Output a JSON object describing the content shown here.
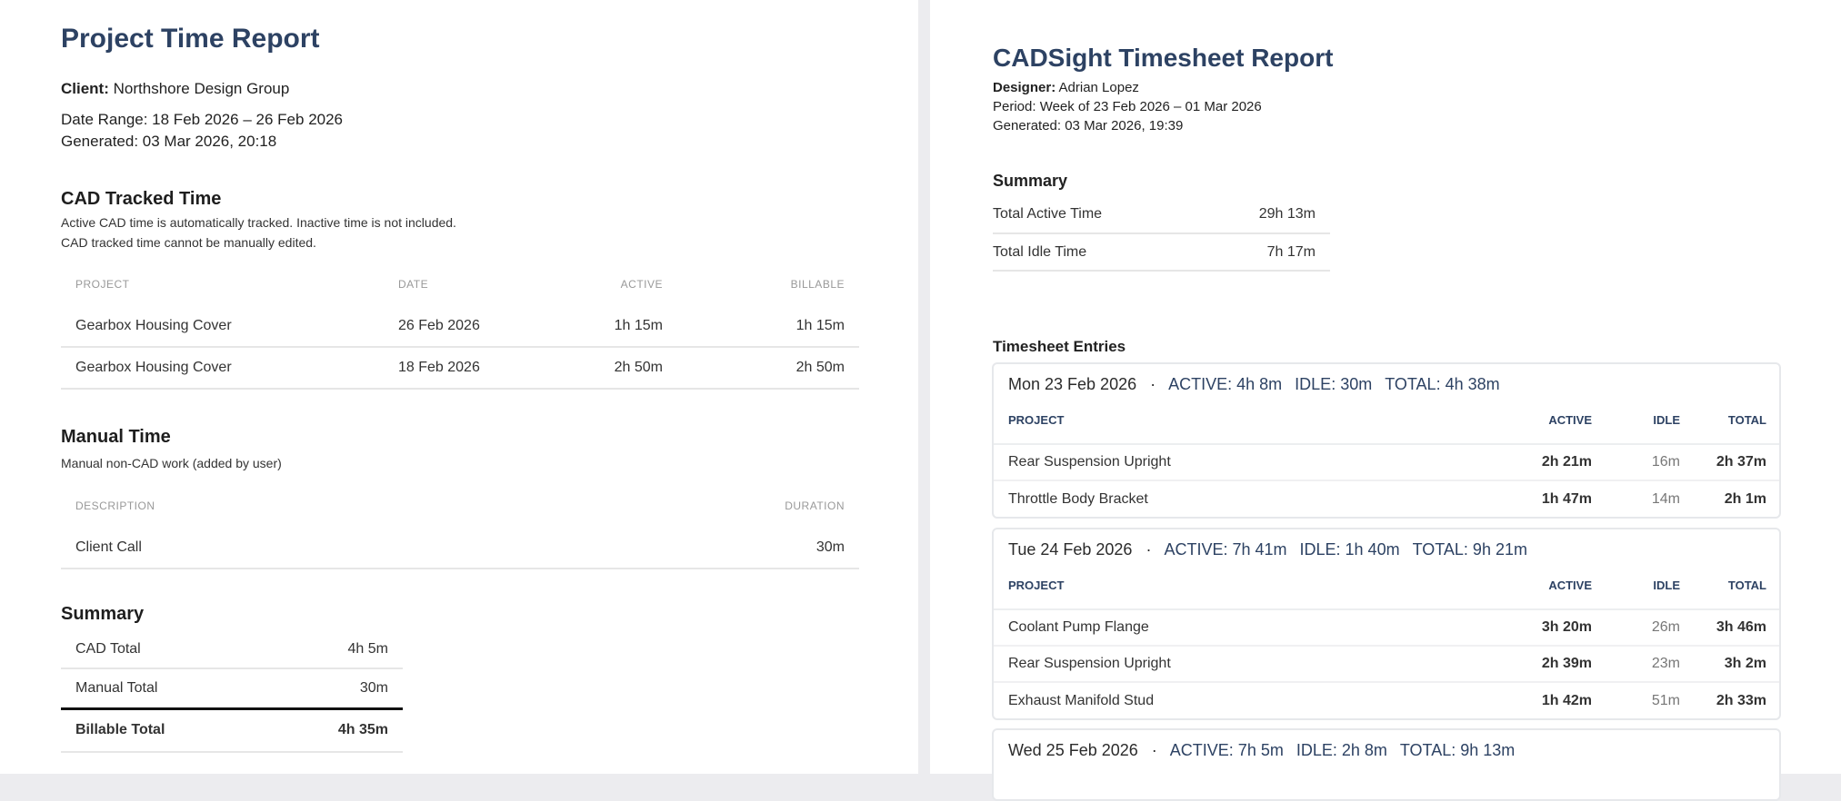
{
  "left": {
    "title": "Project Time Report",
    "client_label": "Client:",
    "client": "Northshore Design Group",
    "date_range": "Date Range: 18 Feb 2026 – 26 Feb 2026",
    "generated": "Generated: 03 Mar 2026, 20:18",
    "cad": {
      "heading": "CAD Tracked Time",
      "note1": "Active CAD time is automatically tracked. Inactive time is not included.",
      "note2": "CAD tracked time cannot be manually edited.",
      "columns": [
        "PROJECT",
        "DATE",
        "ACTIVE",
        "BILLABLE"
      ],
      "rows": [
        [
          "Gearbox Housing Cover",
          "26 Feb 2026",
          "1h 15m",
          "1h 15m"
        ],
        [
          "Gearbox Housing Cover",
          "18 Feb 2026",
          "2h 50m",
          "2h 50m"
        ]
      ]
    },
    "manual": {
      "heading": "Manual Time",
      "note": "Manual non-CAD work (added by user)",
      "columns": [
        "DESCRIPTION",
        "DURATION"
      ],
      "rows": [
        [
          "Client Call",
          "30m"
        ]
      ]
    },
    "summary": {
      "heading": "Summary",
      "rows": [
        [
          "CAD Total",
          "4h 5m"
        ],
        [
          "Manual Total",
          "30m"
        ],
        [
          "Billable Total",
          "4h 35m"
        ]
      ]
    }
  },
  "right": {
    "title": "CADSight Timesheet Report",
    "designer_label": "Designer:",
    "designer": "Adrian Lopez",
    "period": "Period: Week of 23 Feb 2026 – 01 Mar 2026",
    "generated": "Generated: 03 Mar 2026, 19:39",
    "summary": {
      "heading": "Summary",
      "rows": [
        [
          "Total Active Time",
          "29h 13m"
        ],
        [
          "Total Idle Time",
          "7h 17m"
        ]
      ]
    },
    "entries_heading": "Timesheet Entries",
    "columns": [
      "PROJECT",
      "ACTIVE",
      "IDLE",
      "TOTAL"
    ],
    "days": [
      {
        "date": "Mon 23 Feb 2026",
        "sep": "·",
        "active": "ACTIVE:  4h 8m",
        "idle": "IDLE:  30m",
        "total": "TOTAL:  4h 38m",
        "rows": [
          [
            "Rear Suspension Upright",
            "2h 21m",
            "16m",
            "2h 37m"
          ],
          [
            "Throttle Body Bracket",
            "1h 47m",
            "14m",
            "2h 1m"
          ]
        ]
      },
      {
        "date": "Tue 24 Feb 2026",
        "sep": "·",
        "active": "ACTIVE:  7h 41m",
        "idle": "IDLE:  1h 40m",
        "total": "TOTAL:  9h 21m",
        "rows": [
          [
            "Coolant Pump Flange",
            "3h 20m",
            "26m",
            "3h 46m"
          ],
          [
            "Rear Suspension Upright",
            "2h 39m",
            "23m",
            "3h 2m"
          ],
          [
            "Exhaust Manifold Stud",
            "1h 42m",
            "51m",
            "2h 33m"
          ]
        ]
      },
      {
        "date": "Wed 25 Feb 2026",
        "sep": "·",
        "active": "ACTIVE:  7h 5m",
        "idle": "IDLE:  2h 8m",
        "total": "TOTAL:  9h 13m",
        "rows": []
      }
    ]
  }
}
